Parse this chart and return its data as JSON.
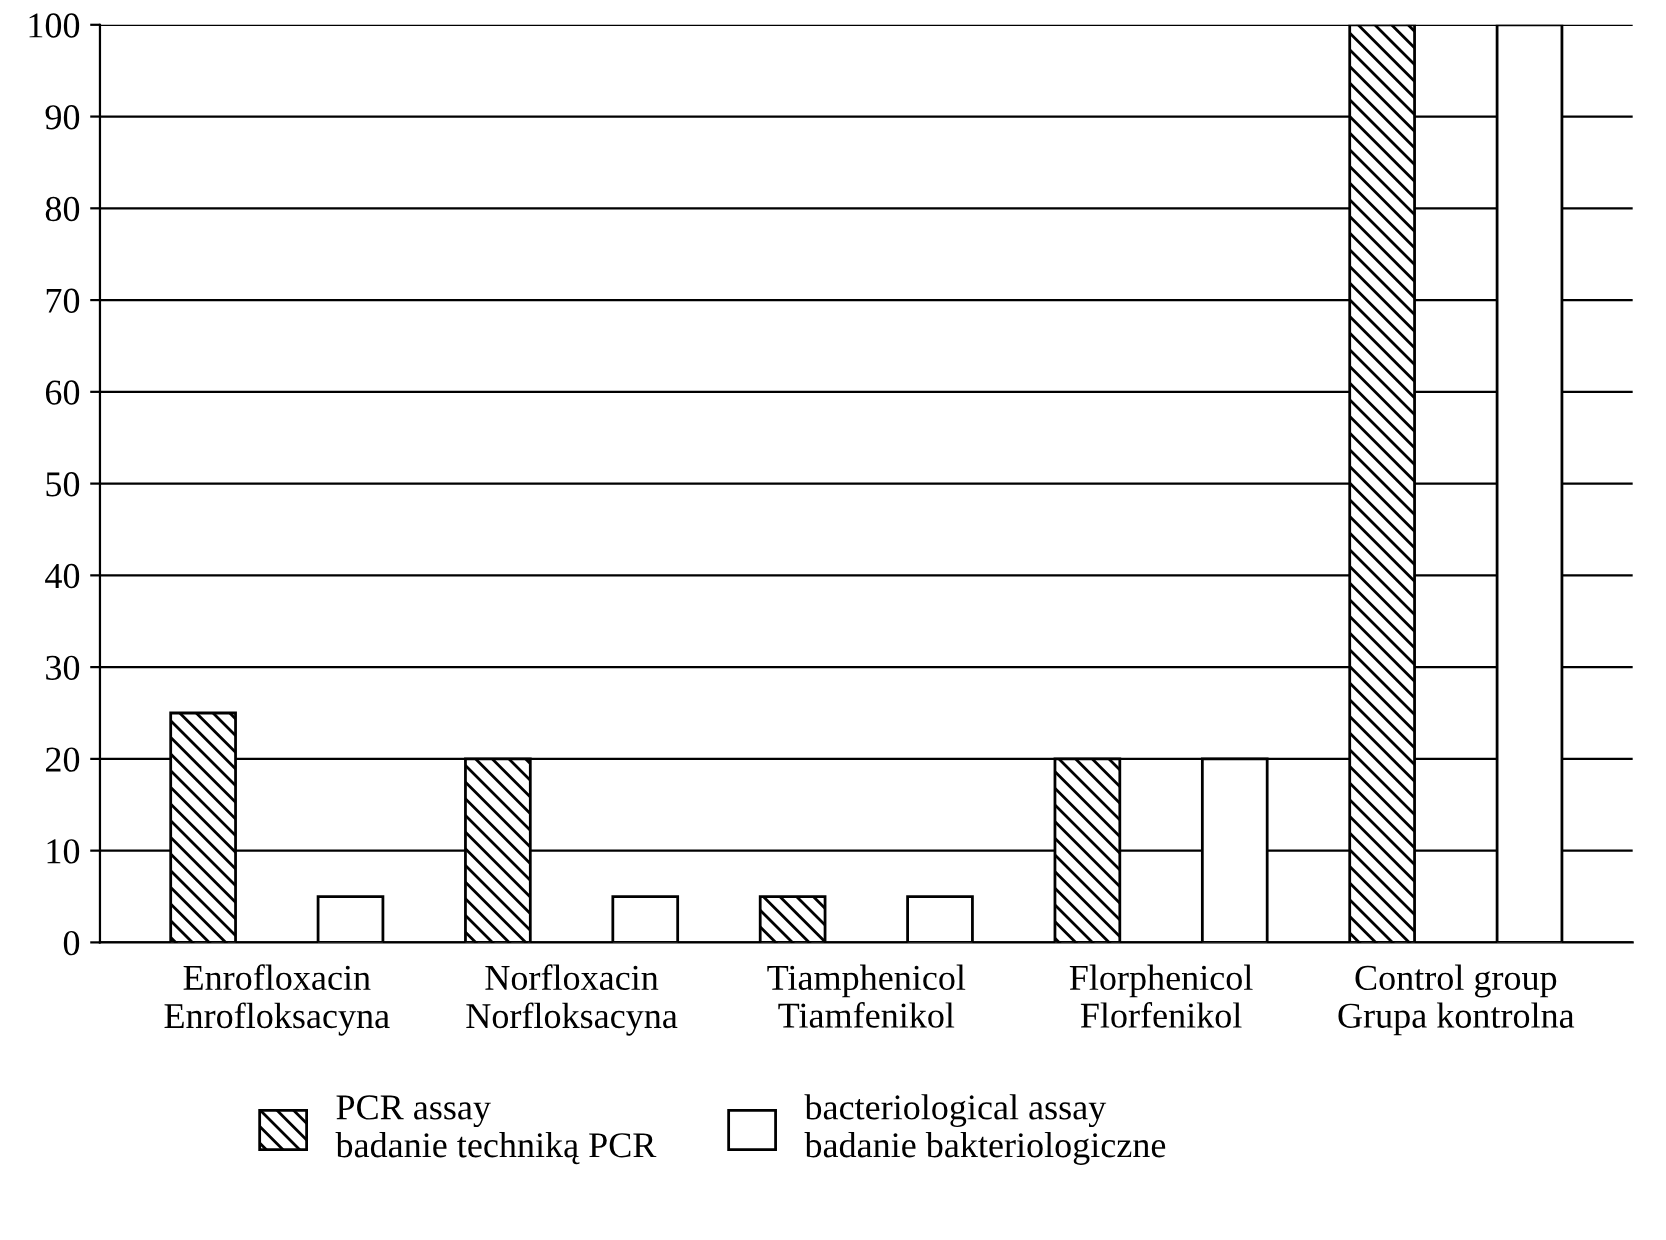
{
  "chart_data": {
    "type": "bar",
    "categories": [
      "Enrofloxacin\nEnrofloksacyna",
      "Norfloxacin\nNorfloksacyna",
      "Tiamphenicol\nTiamfenikol",
      "Florphenicol\nFlorfenikol",
      "Control group\nGrupa kontrolna"
    ],
    "series": [
      {
        "name": "PCR assay\nbadanie techniką PCR",
        "color": "#000000",
        "values": [
          25,
          20,
          5,
          20,
          100
        ]
      },
      {
        "name": "bacteriological assay\nbadanie bakteriologiczne",
        "color": "#ffffff",
        "values": [
          5,
          5,
          5,
          20,
          100
        ]
      }
    ],
    "ylim": [
      0,
      100
    ],
    "yticks": [
      0,
      10,
      20,
      30,
      40,
      50,
      60,
      70,
      80,
      90,
      100
    ],
    "grid": "y",
    "legend": "bottom"
  }
}
